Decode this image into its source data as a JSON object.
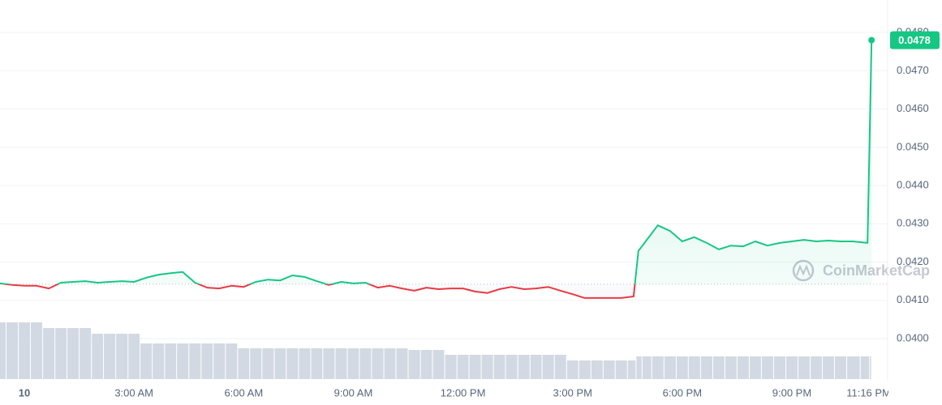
{
  "chart_data": {
    "type": "line",
    "x": [
      -0.67,
      -0.33,
      0,
      0.33,
      0.67,
      1,
      1.33,
      1.67,
      2,
      2.33,
      2.67,
      3,
      3.33,
      3.67,
      4,
      4.33,
      4.67,
      5,
      5.33,
      5.67,
      6,
      6.33,
      6.67,
      7,
      7.33,
      7.67,
      8,
      8.33,
      8.67,
      9,
      9.33,
      9.67,
      10,
      10.33,
      10.67,
      11,
      11.33,
      11.67,
      12,
      12.33,
      12.67,
      13,
      13.33,
      13.67,
      14,
      14.33,
      14.67,
      15,
      15.33,
      15.67,
      16,
      16.33,
      16.67,
      16.8,
      17,
      17.33,
      17.67,
      18,
      18.33,
      18.67,
      19,
      19.33,
      19.67,
      20,
      20.33,
      20.67,
      21,
      21.33,
      21.67,
      22,
      22.33,
      22.67,
      23.07,
      23.18
    ],
    "values": [
      0.04144,
      0.0414,
      0.04138,
      0.04138,
      0.04131,
      0.04146,
      0.04148,
      0.0415,
      0.04146,
      0.04148,
      0.0415,
      0.04148,
      0.04159,
      0.04167,
      0.04171,
      0.04174,
      0.04146,
      0.04133,
      0.04131,
      0.04138,
      0.04135,
      0.04148,
      0.04154,
      0.04152,
      0.04165,
      0.04161,
      0.0415,
      0.0414,
      0.04148,
      0.04144,
      0.04146,
      0.04133,
      0.04138,
      0.04131,
      0.04125,
      0.04133,
      0.04129,
      0.04131,
      0.04131,
      0.04123,
      0.04119,
      0.04129,
      0.04135,
      0.04129,
      0.04131,
      0.04135,
      0.04125,
      0.04116,
      0.04106,
      0.04106,
      0.04106,
      0.04106,
      0.0411,
      0.04229,
      0.04254,
      0.04296,
      0.04281,
      0.04254,
      0.04265,
      0.0425,
      0.04233,
      0.04243,
      0.04241,
      0.04254,
      0.04243,
      0.0425,
      0.04254,
      0.04258,
      0.04254,
      0.04256,
      0.04254,
      0.04254,
      0.0425,
      0.0478
    ],
    "value_labels": [
      null,
      null,
      null,
      null,
      null,
      null,
      null,
      null,
      null,
      null,
      null,
      null,
      null,
      null,
      null,
      null,
      null,
      null,
      null,
      null,
      null,
      null,
      null,
      null,
      null,
      null,
      null,
      null,
      null,
      null,
      null,
      null,
      null,
      null,
      null,
      null,
      null,
      null,
      null,
      null,
      null,
      null,
      null,
      null,
      null,
      null,
      null,
      null,
      null,
      null,
      null,
      null,
      null,
      null,
      null,
      null,
      null,
      null,
      null,
      null,
      null,
      null,
      null,
      null,
      null,
      null,
      null,
      null,
      null,
      null,
      null,
      null,
      null,
      "0.0478"
    ],
    "volume": [
      70,
      70,
      70,
      70,
      63,
      63,
      63,
      63,
      56,
      56,
      56,
      56,
      44,
      44,
      44,
      44,
      44,
      44,
      44,
      44,
      38,
      38,
      38,
      38,
      38,
      38,
      38,
      38,
      38,
      38,
      38,
      38,
      38,
      38,
      36,
      36,
      36,
      30,
      30,
      30,
      30,
      30,
      30,
      30,
      30,
      30,
      30,
      23,
      23,
      23,
      23,
      23,
      23,
      28,
      28,
      28,
      28,
      28,
      28,
      28,
      28,
      28,
      28,
      28,
      28,
      28,
      28,
      28,
      28,
      28,
      28,
      28,
      28,
      28
    ],
    "volume_lim": [
      0,
      100
    ],
    "baseline": 0.04142,
    "up_color": "#16c784",
    "down_color": "#ea3943",
    "volume_color": "#d3d9e3",
    "xlim": [
      -0.667,
      23.62
    ],
    "ylim": [
      0.03894,
      0.04885
    ],
    "xticks": [
      {
        "value": 0,
        "label": "10"
      },
      {
        "value": 3,
        "label": "3:00 AM"
      },
      {
        "value": 6,
        "label": "6:00 AM"
      },
      {
        "value": 9,
        "label": "9:00 AM"
      },
      {
        "value": 12,
        "label": "12:00 PM"
      },
      {
        "value": 15,
        "label": "3:00 PM"
      },
      {
        "value": 18,
        "label": "6:00 PM"
      },
      {
        "value": 21,
        "label": "9:00 PM"
      },
      {
        "value": 23.1,
        "label": "11:16 PM"
      }
    ],
    "yticks": [
      {
        "value": 0.04,
        "label": "0.0400"
      },
      {
        "value": 0.041,
        "label": "0.0410"
      },
      {
        "value": 0.042,
        "label": "0.0420"
      },
      {
        "value": 0.043,
        "label": "0.0430"
      },
      {
        "value": 0.044,
        "label": "0.0440"
      },
      {
        "value": 0.045,
        "label": "0.0450"
      },
      {
        "value": 0.046,
        "label": "0.0460"
      },
      {
        "value": 0.047,
        "label": "0.0470"
      },
      {
        "value": 0.048,
        "label": "0.0480"
      }
    ],
    "grid": true,
    "watermark": "CoinMarketCap"
  }
}
